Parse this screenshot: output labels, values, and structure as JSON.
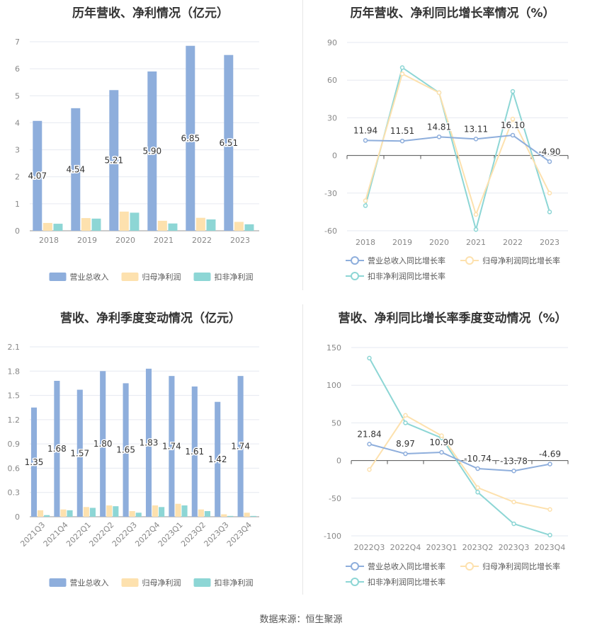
{
  "source": "数据来源：恒生聚源",
  "colors": {
    "revenue": "#8eaedc",
    "netprofit": "#fde1ae",
    "deducted": "#8dd6d5",
    "grid": "#e6e9f0",
    "axis": "#999999"
  },
  "chart_data": [
    {
      "type": "bar",
      "title": "历年营收、净利情况（亿元）",
      "categories": [
        "2018",
        "2019",
        "2020",
        "2021",
        "2022",
        "2023"
      ],
      "ylim": [
        0,
        7
      ],
      "yticks": [
        "0",
        "1",
        "2",
        "3",
        "4",
        "5",
        "6",
        "7"
      ],
      "series": [
        {
          "name": "营业总收入",
          "values": [
            4.07,
            4.54,
            5.21,
            5.9,
            6.85,
            6.51
          ],
          "labels": [
            "4.07",
            "4.54",
            "5.21",
            "5.90",
            "6.85",
            "6.51"
          ]
        },
        {
          "name": "归母净利润",
          "values": [
            0.29,
            0.47,
            0.71,
            0.37,
            0.48,
            0.33
          ]
        },
        {
          "name": "扣非净利润",
          "values": [
            0.26,
            0.45,
            0.67,
            0.27,
            0.42,
            0.24
          ]
        }
      ],
      "legend": "bottom"
    },
    {
      "type": "line",
      "title": "历年营收、净利同比增长率情况（%）",
      "categories": [
        "2018",
        "2019",
        "2020",
        "2021",
        "2022",
        "2023"
      ],
      "ylim": [
        -60,
        90
      ],
      "yticks": [
        "-60",
        "-30",
        "0",
        "30",
        "60",
        "90"
      ],
      "series": [
        {
          "name": "营业总收入同比增长率",
          "values": [
            11.94,
            11.51,
            14.81,
            13.11,
            16.1,
            -4.9
          ],
          "labels": [
            "11.94",
            "11.51",
            "14.81",
            "13.11",
            "16.10",
            "-4.90"
          ]
        },
        {
          "name": "归母净利润同比增长率",
          "values": [
            -36,
            65,
            50,
            -47,
            29,
            -30
          ]
        },
        {
          "name": "扣非净利润同比增长率",
          "values": [
            -40,
            70,
            50,
            -59,
            51,
            -45
          ]
        }
      ],
      "legend": "bottom"
    },
    {
      "type": "bar",
      "title": "营收、净利季度变动情况（亿元）",
      "categories": [
        "2021Q3",
        "2021Q4",
        "2022Q1",
        "2022Q2",
        "2022Q3",
        "2022Q4",
        "2023Q1",
        "2023Q2",
        "2023Q3",
        "2023Q4"
      ],
      "ylim": [
        0,
        2.1
      ],
      "yticks": [
        "0",
        "0.3",
        "0.6",
        "0.9",
        "1.2",
        "1.5",
        "1.8",
        "2.1"
      ],
      "series": [
        {
          "name": "营业总收入",
          "values": [
            1.35,
            1.68,
            1.57,
            1.8,
            1.65,
            1.83,
            1.74,
            1.61,
            1.42,
            1.74
          ],
          "labels": [
            "1.35",
            "1.68",
            "1.57",
            "1.80",
            "1.65",
            "1.83",
            "1.74",
            "1.61",
            "1.42",
            "1.74"
          ]
        },
        {
          "name": "归母净利润",
          "values": [
            0.08,
            0.09,
            0.12,
            0.14,
            0.07,
            0.14,
            0.16,
            0.09,
            0.03,
            0.05
          ]
        },
        {
          "name": "扣非净利润",
          "values": [
            0.02,
            0.08,
            0.11,
            0.13,
            0.05,
            0.12,
            0.14,
            0.07,
            0.01,
            0.01
          ]
        }
      ],
      "legend": "bottom"
    },
    {
      "type": "line",
      "title": "营收、净利同比增长率季度变动情况（%）",
      "categories": [
        "2022Q3",
        "2022Q4",
        "2023Q1",
        "2023Q2",
        "2023Q3",
        "2023Q4"
      ],
      "ylim": [
        -100,
        150
      ],
      "yticks": [
        "-100",
        "-50",
        "0",
        "50",
        "100",
        "150"
      ],
      "series": [
        {
          "name": "营业总收入同比增长率",
          "values": [
            21.84,
            8.97,
            10.9,
            -10.74,
            -13.78,
            -4.69
          ],
          "labels": [
            "21.84",
            "8.97",
            "10.90",
            "-10.74",
            "-13.78",
            "-4.69"
          ]
        },
        {
          "name": "归母净利润同比增长率",
          "values": [
            -12,
            60,
            33,
            -36,
            -55,
            -65
          ]
        },
        {
          "name": "扣非净利润同比增长率",
          "values": [
            136,
            50,
            30,
            -42,
            -84,
            -99
          ]
        }
      ],
      "legend": "bottom"
    }
  ]
}
